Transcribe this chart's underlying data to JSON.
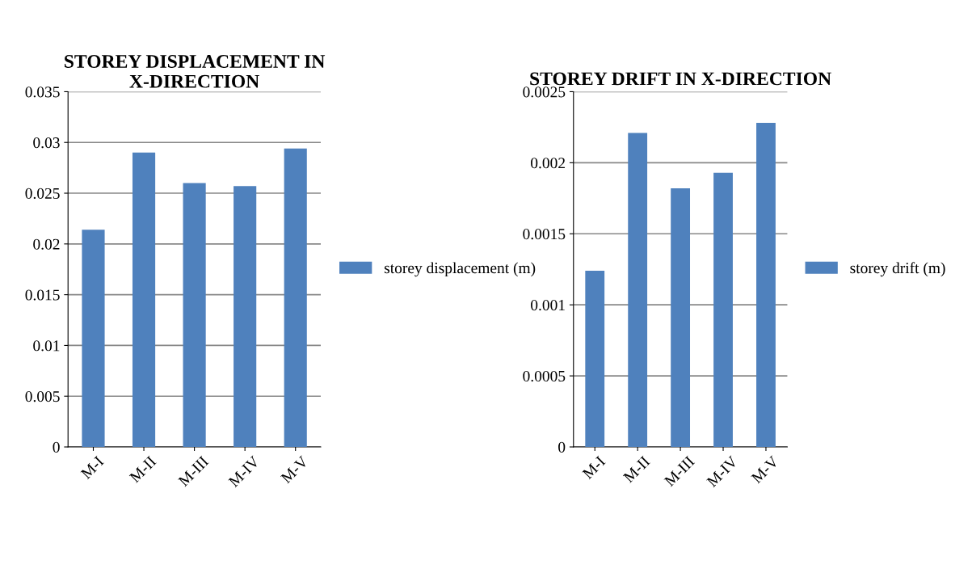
{
  "chart_data": [
    {
      "type": "bar",
      "title": "STOREY DISPLACEMENT IN X-DIRECTION",
      "categories": [
        "M-I",
        "M-II",
        "M-III",
        "M-IV",
        "M-V"
      ],
      "series": [
        {
          "name": "storey displacement (m)",
          "color": "#4f81bd",
          "values": [
            0.0214,
            0.029,
            0.026,
            0.0257,
            0.0294
          ]
        }
      ],
      "ylim": [
        0,
        0.035
      ],
      "yticks": [
        0,
        0.005,
        0.01,
        0.015,
        0.02,
        0.025,
        0.03,
        0.035
      ],
      "grid": "y",
      "legend": "right"
    },
    {
      "type": "bar",
      "title": "STOREY DRIFT IN X-DIRECTION",
      "categories": [
        "M-I",
        "M-II",
        "M-III",
        "M-IV",
        "M-V"
      ],
      "series": [
        {
          "name": "storey drift (m)",
          "color": "#4f81bd",
          "values": [
            0.00124,
            0.00221,
            0.00182,
            0.00193,
            0.00228
          ]
        }
      ],
      "ylim": [
        0,
        0.0025
      ],
      "yticks": [
        0,
        0.0005,
        0.001,
        0.0015,
        0.002,
        0.0025
      ],
      "grid": "y",
      "legend": "right"
    }
  ]
}
